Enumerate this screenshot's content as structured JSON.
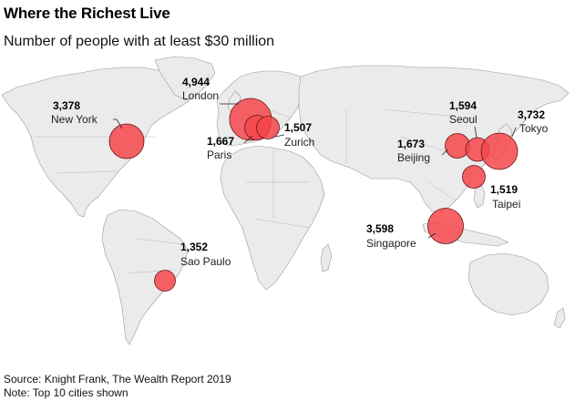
{
  "title": "Where the Richest Live",
  "subtitle": "Number of people with at least $30 million",
  "footnotes": {
    "source": "Source: Knight Frank, The Wealth Report 2019",
    "note": "Note: Top 10 cities shown"
  },
  "colors": {
    "bubble": "#f4474b",
    "land": "#ebebeb",
    "land_stroke": "#9a9a9a"
  },
  "cities": [
    {
      "id": "new-york",
      "name": "New York",
      "value": 3378,
      "label": "3,378"
    },
    {
      "id": "london",
      "name": "London",
      "value": 4944,
      "label": "4,944"
    },
    {
      "id": "paris",
      "name": "Paris",
      "value": 1667,
      "label": "1,667"
    },
    {
      "id": "zurich",
      "name": "Zurich",
      "value": 1507,
      "label": "1,507"
    },
    {
      "id": "seoul",
      "name": "Seoul",
      "value": 1594,
      "label": "1,594"
    },
    {
      "id": "tokyo",
      "name": "Tokyo",
      "value": 3732,
      "label": "3,732"
    },
    {
      "id": "beijing",
      "name": "Beijing",
      "value": 1673,
      "label": "1,673"
    },
    {
      "id": "taipei",
      "name": "Taipei",
      "value": 1519,
      "label": "1,519"
    },
    {
      "id": "singapore",
      "name": "Singapore",
      "value": 3598,
      "label": "3,598"
    },
    {
      "id": "sao-paulo",
      "name": "Sao Paulo",
      "value": 1352,
      "label": "1,352"
    }
  ]
}
